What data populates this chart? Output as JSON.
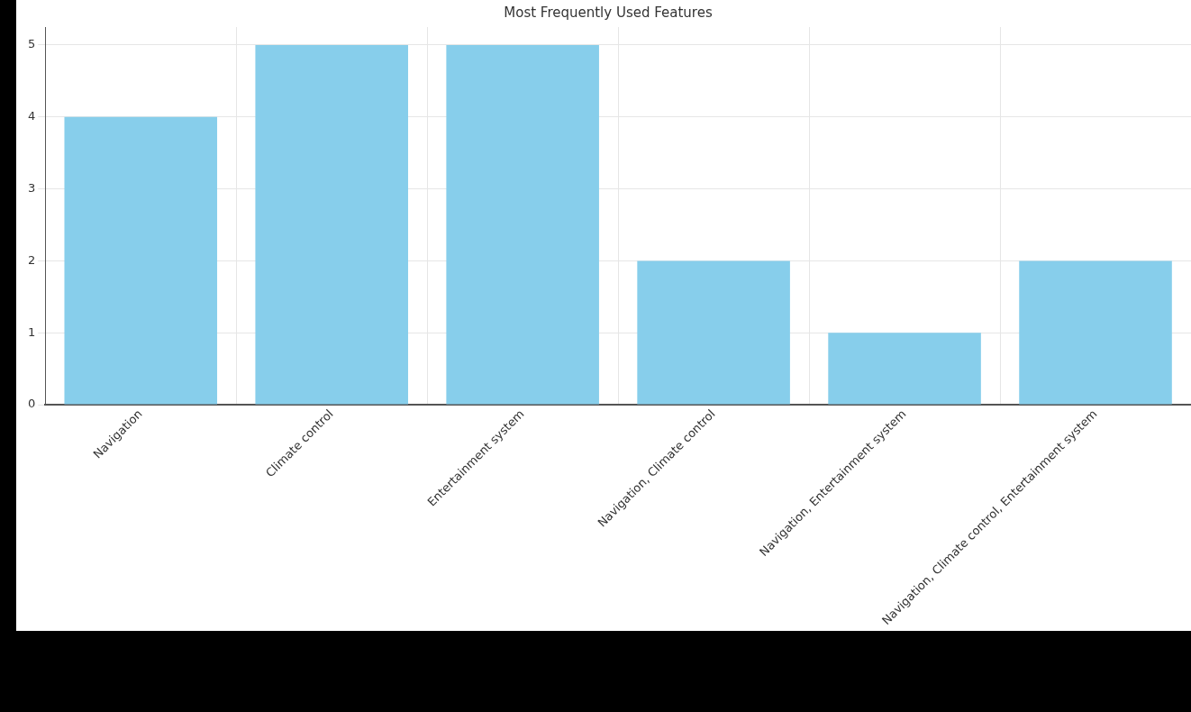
{
  "chart_data": {
    "type": "bar",
    "title": "Most Frequently Used Features",
    "categories": [
      "Navigation",
      "Climate control",
      "Entertainment system",
      "Navigation, Climate control",
      "Navigation, Entertainment system",
      "Navigation, Climate control, Entertainment system"
    ],
    "values": [
      4,
      5,
      5,
      2,
      1,
      2
    ],
    "color": "#87ceeb",
    "ylim": [
      0,
      5.25
    ],
    "yticks": [
      0,
      1,
      2,
      3,
      4,
      5
    ],
    "grid": true
  }
}
